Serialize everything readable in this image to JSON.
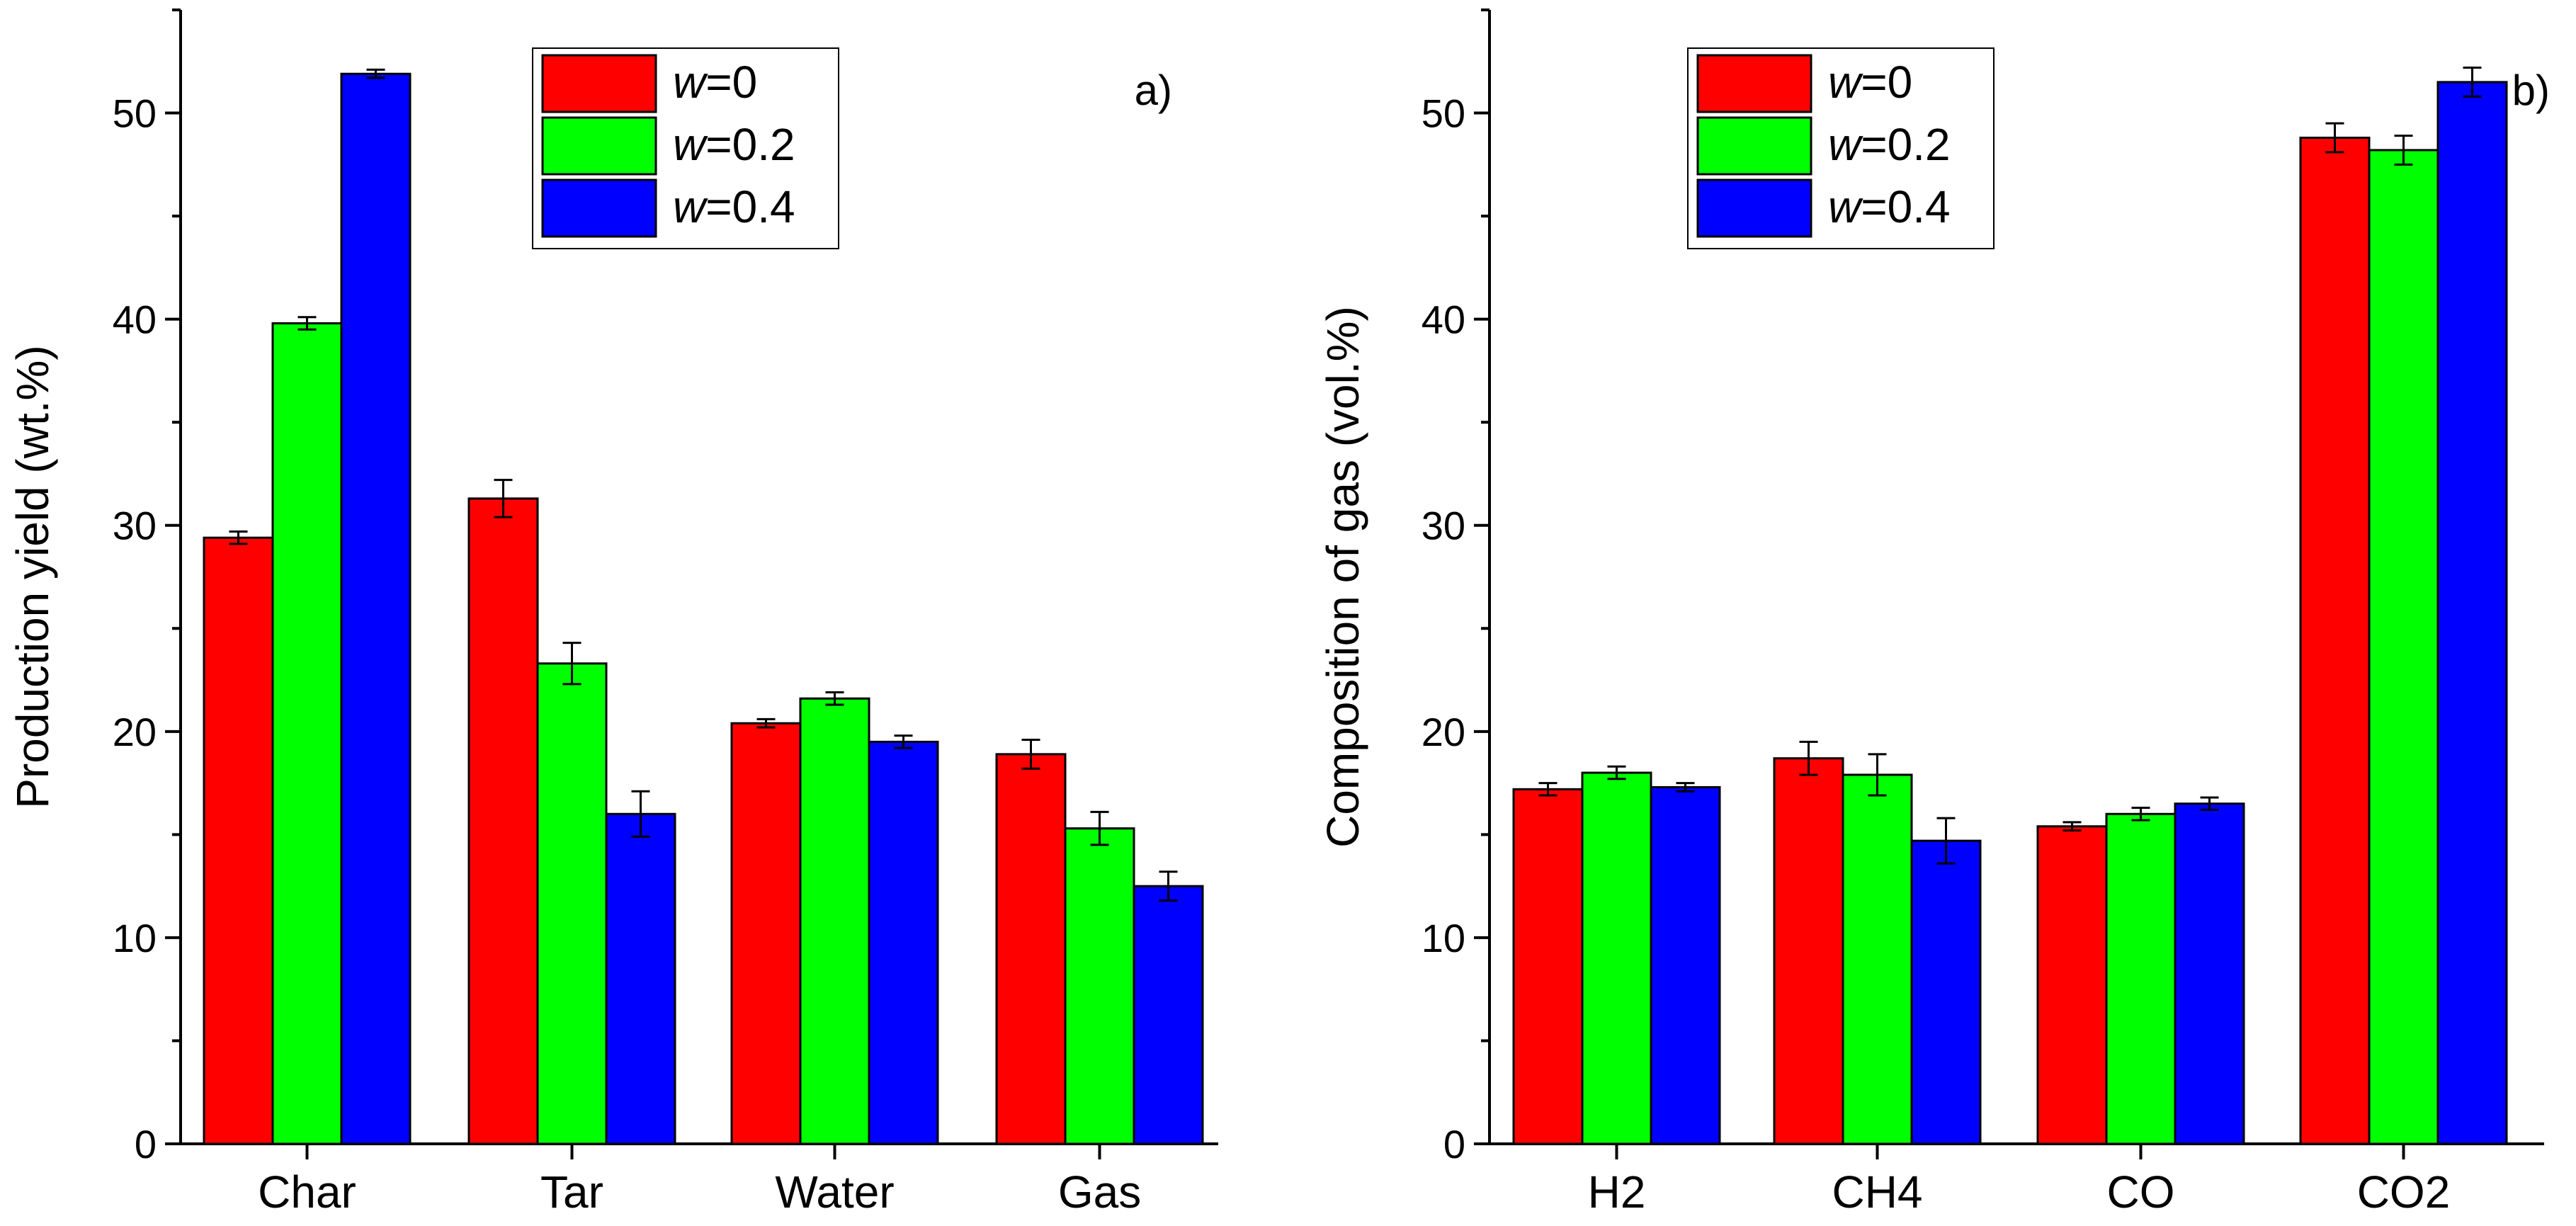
{
  "colors": {
    "w0": "#ff0000",
    "w02": "#00ff00",
    "w04": "#0000ff"
  },
  "legend_entries": [
    {
      "prefix": "w",
      "suffix": "=0"
    },
    {
      "prefix": "w",
      "suffix": "=0.2"
    },
    {
      "prefix": "w",
      "suffix": "=0.4"
    }
  ],
  "chart_data": [
    {
      "type": "bar",
      "panel": "a)",
      "ylabel": "Production yield (wt.%)",
      "xlabel": "",
      "ylim": [
        0,
        55
      ],
      "yticks": [
        0,
        10,
        20,
        30,
        40,
        50
      ],
      "categories": [
        "Char",
        "Tar",
        "Water",
        "Gas"
      ],
      "series": [
        {
          "name": "w=0",
          "values": [
            29.4,
            31.3,
            20.4,
            18.9
          ],
          "errors": [
            0.3,
            0.9,
            0.2,
            0.7
          ]
        },
        {
          "name": "w=0.2",
          "values": [
            39.8,
            23.3,
            21.6,
            15.3
          ],
          "errors": [
            0.3,
            1.0,
            0.3,
            0.8
          ]
        },
        {
          "name": "w=0.4",
          "values": [
            51.9,
            16.0,
            19.5,
            12.5
          ],
          "errors": [
            0.2,
            1.1,
            0.3,
            0.7
          ]
        }
      ],
      "legend_position": "top-center"
    },
    {
      "type": "bar",
      "panel": "b)",
      "ylabel": "Composition of gas (vol.%)",
      "xlabel": "",
      "ylim": [
        0,
        55
      ],
      "yticks": [
        0,
        10,
        20,
        30,
        40,
        50
      ],
      "categories": [
        "H2",
        "CH4",
        "CO",
        "CO2"
      ],
      "series": [
        {
          "name": "w=0",
          "values": [
            17.2,
            18.7,
            15.4,
            48.8
          ],
          "errors": [
            0.3,
            0.8,
            0.2,
            0.7
          ]
        },
        {
          "name": "w=0.2",
          "values": [
            18.0,
            17.9,
            16.0,
            48.2
          ],
          "errors": [
            0.3,
            1.0,
            0.3,
            0.7
          ]
        },
        {
          "name": "w=0.4",
          "values": [
            17.3,
            14.7,
            16.5,
            51.5
          ],
          "errors": [
            0.2,
            1.1,
            0.3,
            0.7
          ]
        }
      ],
      "legend_position": "top-left"
    }
  ]
}
